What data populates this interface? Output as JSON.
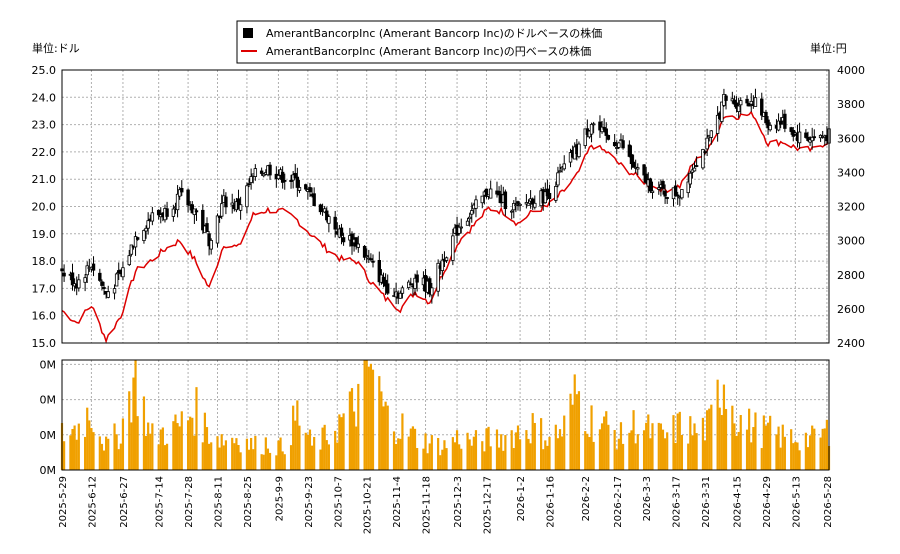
{
  "legend": {
    "dollar_label": "AmerantBancorpInc (Amerant Bancorp Inc)のドルベースの株価",
    "yen_label": "AmerantBancorpInc (Amerant Bancorp Inc)の円ベースの株価"
  },
  "units": {
    "left": "単位:ドル",
    "right": "単位:円"
  },
  "colors": {
    "candle": "#000000",
    "yen_line": "#dd0000",
    "volume": "#f0a000",
    "grid": "#b0b0b0",
    "frame": "#000000"
  },
  "chart_data": [
    {
      "type": "candlestick",
      "legend_position": "top-center",
      "grid": true,
      "y_left": {
        "unit": "ドル",
        "range": [
          15.0,
          25.0
        ],
        "ticks": [
          "15.0",
          "16.0",
          "17.0",
          "18.0",
          "19.0",
          "20.0",
          "21.0",
          "22.0",
          "23.0",
          "24.0",
          "25.0"
        ]
      },
      "y_right": {
        "unit": "円",
        "range": [
          2400,
          4000
        ],
        "ticks": [
          "2400",
          "2600",
          "2800",
          "3000",
          "3200",
          "3400",
          "3600",
          "3800",
          "4000"
        ]
      },
      "x_range": [
        "2025-05-29",
        "2026-05-29"
      ],
      "series": [
        {
          "name": "AmerantBancorpInc (Amerant Bancorp Inc)のドルベースの株価",
          "style": "candles",
          "approx_close_weekly": [
            [
              "2025-05-29",
              17.6
            ],
            [
              "2025-06-05",
              17.2
            ],
            [
              "2025-06-12",
              17.9
            ],
            [
              "2025-06-19",
              16.8
            ],
            [
              "2025-06-26",
              17.5
            ],
            [
              "2025-07-03",
              18.9
            ],
            [
              "2025-07-10",
              19.6
            ],
            [
              "2025-07-17",
              19.8
            ],
            [
              "2025-07-24",
              20.4
            ],
            [
              "2025-07-31",
              19.9
            ],
            [
              "2025-08-07",
              18.8
            ],
            [
              "2025-08-14",
              20.2
            ],
            [
              "2025-08-21",
              20.0
            ],
            [
              "2025-08-28",
              21.1
            ],
            [
              "2025-09-04",
              21.4
            ],
            [
              "2025-09-11",
              21.1
            ],
            [
              "2025-09-18",
              20.9
            ],
            [
              "2025-09-25",
              20.3
            ],
            [
              "2025-10-02",
              19.7
            ],
            [
              "2025-10-09",
              18.9
            ],
            [
              "2025-10-16",
              18.7
            ],
            [
              "2025-10-23",
              17.9
            ],
            [
              "2025-10-30",
              17.1
            ],
            [
              "2025-11-06",
              16.8
            ],
            [
              "2025-11-13",
              17.4
            ],
            [
              "2025-11-20",
              17.0
            ],
            [
              "2025-11-27",
              18.2
            ],
            [
              "2025-12-04",
              19.3
            ],
            [
              "2025-12-11",
              19.9
            ],
            [
              "2025-12-18",
              20.6
            ],
            [
              "2025-12-25",
              20.2
            ],
            [
              "2026-01-01",
              19.9
            ],
            [
              "2026-01-08",
              20.3
            ],
            [
              "2026-01-15",
              20.4
            ],
            [
              "2026-01-22",
              21.3
            ],
            [
              "2026-01-29",
              22.1
            ],
            [
              "2026-02-05",
              23.1
            ],
            [
              "2026-02-12",
              22.5
            ],
            [
              "2026-02-19",
              22.3
            ],
            [
              "2026-02-26",
              21.3
            ],
            [
              "2026-03-05",
              20.8
            ],
            [
              "2026-03-12",
              20.5
            ],
            [
              "2026-03-19",
              20.5
            ],
            [
              "2026-03-26",
              21.6
            ],
            [
              "2026-04-02",
              22.4
            ],
            [
              "2026-04-09",
              23.9
            ],
            [
              "2026-04-16",
              23.8
            ],
            [
              "2026-04-23",
              23.9
            ],
            [
              "2026-04-30",
              23.0
            ],
            [
              "2026-05-07",
              23.1
            ],
            [
              "2026-05-14",
              22.6
            ],
            [
              "2026-05-21",
              22.5
            ],
            [
              "2026-05-28",
              22.6
            ]
          ]
        },
        {
          "name": "AmerantBancorpInc (Amerant Bancorp Inc)の円ベースの株価",
          "style": "line",
          "axis": "right",
          "approx_weekly": [
            [
              "2025-05-29",
              2590
            ],
            [
              "2025-06-05",
              2520
            ],
            [
              "2025-06-12",
              2620
            ],
            [
              "2025-06-19",
              2420
            ],
            [
              "2025-06-26",
              2560
            ],
            [
              "2025-07-03",
              2820
            ],
            [
              "2025-07-10",
              2880
            ],
            [
              "2025-07-17",
              2950
            ],
            [
              "2025-07-24",
              3000
            ],
            [
              "2025-07-31",
              2890
            ],
            [
              "2025-08-07",
              2720
            ],
            [
              "2025-08-14",
              2980
            ],
            [
              "2025-08-21",
              2960
            ],
            [
              "2025-08-28",
              3150
            ],
            [
              "2025-09-04",
              3180
            ],
            [
              "2025-09-11",
              3170
            ],
            [
              "2025-09-18",
              3120
            ],
            [
              "2025-09-25",
              3030
            ],
            [
              "2025-10-02",
              2950
            ],
            [
              "2025-10-09",
              2890
            ],
            [
              "2025-10-16",
              2880
            ],
            [
              "2025-10-23",
              2760
            ],
            [
              "2025-10-30",
              2660
            ],
            [
              "2025-11-06",
              2600
            ],
            [
              "2025-11-13",
              2700
            ],
            [
              "2025-11-20",
              2640
            ],
            [
              "2025-11-27",
              2830
            ],
            [
              "2025-12-04",
              3000
            ],
            [
              "2025-12-11",
              3090
            ],
            [
              "2025-12-18",
              3190
            ],
            [
              "2025-12-25",
              3170
            ],
            [
              "2026-01-01",
              3100
            ],
            [
              "2026-01-08",
              3170
            ],
            [
              "2026-01-15",
              3200
            ],
            [
              "2026-01-22",
              3280
            ],
            [
              "2026-01-29",
              3380
            ],
            [
              "2026-02-05",
              3560
            ],
            [
              "2026-02-12",
              3520
            ],
            [
              "2026-02-19",
              3440
            ],
            [
              "2026-02-26",
              3380
            ],
            [
              "2026-03-05",
              3320
            ],
            [
              "2026-03-12",
              3300
            ],
            [
              "2026-03-19",
              3320
            ],
            [
              "2026-03-26",
              3460
            ],
            [
              "2026-04-02",
              3540
            ],
            [
              "2026-04-09",
              3730
            ],
            [
              "2026-04-16",
              3730
            ],
            [
              "2026-04-23",
              3740
            ],
            [
              "2026-04-30",
              3570
            ],
            [
              "2026-05-07",
              3580
            ],
            [
              "2026-05-14",
              3540
            ],
            [
              "2026-05-21",
              3530
            ],
            [
              "2026-05-28",
              3580
            ]
          ]
        }
      ]
    },
    {
      "type": "bar",
      "name_hidden": true,
      "y_ticks": [
        "0M",
        "0M",
        "0M",
        "0M"
      ],
      "x_ticks": [
        "2025-5-29",
        "2025-6-12",
        "2025-6-27",
        "2025-7-14",
        "2025-7-28",
        "2025-8-11",
        "2025-8-25",
        "2025-9-9",
        "2025-9-23",
        "2025-10-7",
        "2025-10-21",
        "2025-11-4",
        "2025-11-18",
        "2025-12-3",
        "2025-12-17",
        "2026-1-2",
        "2026-1-16",
        "2026-2-2",
        "2026-2-17",
        "2026-3-3",
        "2026-3-17",
        "2026-3-31",
        "2026-4-15",
        "2026-4-29",
        "2026-5-13",
        "2026-5-28"
      ],
      "note_relative_volume_weekly": [
        0.32,
        0.38,
        0.55,
        0.22,
        0.35,
        0.9,
        0.3,
        0.35,
        0.4,
        0.55,
        0.35,
        0.28,
        0.3,
        0.22,
        0.25,
        0.2,
        0.5,
        0.22,
        0.3,
        0.45,
        0.6,
        0.95,
        0.5,
        0.4,
        0.3,
        0.25,
        0.22,
        0.3,
        0.25,
        0.28,
        0.3,
        0.35,
        0.4,
        0.3,
        0.35,
        0.7,
        0.45,
        0.4,
        0.3,
        0.42,
        0.35,
        0.3,
        0.4,
        0.35,
        0.4,
        0.85,
        0.45,
        0.38,
        0.35,
        0.3,
        0.3,
        0.28,
        0.35
      ]
    }
  ]
}
